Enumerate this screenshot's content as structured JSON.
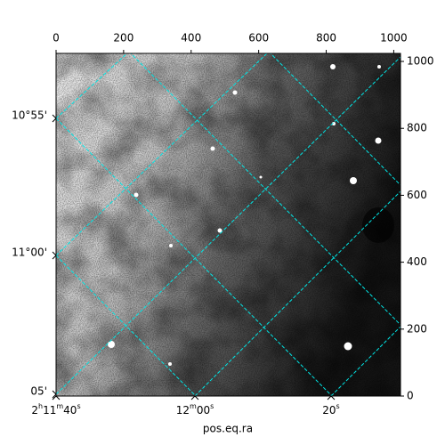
{
  "chart_data": {
    "type": "image",
    "x_label": "pos.eq.ra",
    "xlim": [
      0,
      1020
    ],
    "xticks": [
      0,
      200,
      400,
      600,
      800,
      1000
    ],
    "ylim": [
      0,
      1024
    ],
    "yticks": [
      0,
      200,
      400,
      600,
      800,
      1000
    ],
    "ra_ticks": [
      "2h11m40s",
      "12m00s",
      "20s"
    ],
    "dec_ticks": [
      "10°55'",
      "11°00'",
      "05'"
    ],
    "grid_color": "#00e5e5"
  }
}
